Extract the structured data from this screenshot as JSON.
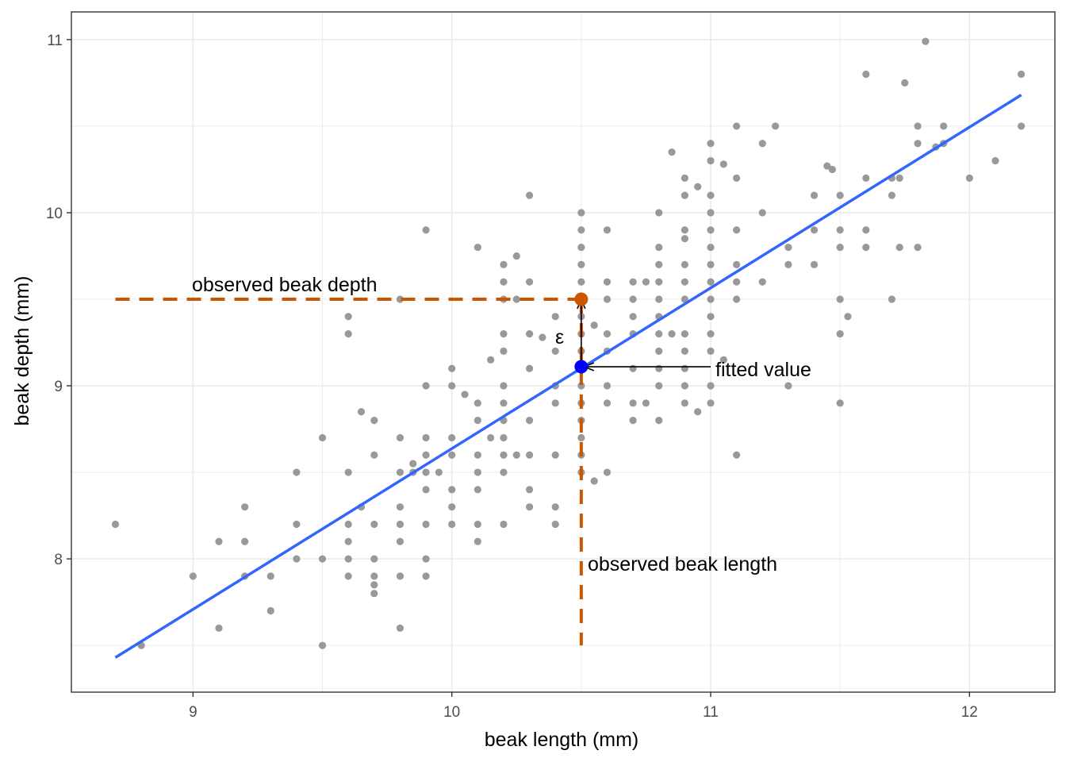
{
  "chart_data": {
    "type": "scatter",
    "title": "",
    "xlabel": "beak length (mm)",
    "ylabel": "beak depth (mm)",
    "xlim": [
      8.53,
      12.33
    ],
    "ylim": [
      7.23,
      11.16
    ],
    "grid": true,
    "x_ticks": [
      9,
      10,
      11,
      12
    ],
    "x_tick_labels": [
      "9",
      "10",
      "11",
      "12"
    ],
    "y_ticks": [
      8,
      9,
      10,
      11
    ],
    "y_tick_labels": [
      "8",
      "9",
      "10",
      "11"
    ],
    "colors": {
      "points": "#999999",
      "fit_line": "#3366ff",
      "observed": "#cc5500",
      "fitted_point": "#0000ff",
      "grid": "#ebebeb",
      "border": "#333333"
    },
    "points": [
      [
        8.7,
        8.2
      ],
      [
        8.8,
        7.5
      ],
      [
        9.0,
        7.9
      ],
      [
        9.1,
        8.1
      ],
      [
        9.1,
        7.6
      ],
      [
        9.2,
        8.3
      ],
      [
        9.2,
        8.1
      ],
      [
        9.2,
        7.9
      ],
      [
        9.3,
        7.9
      ],
      [
        9.3,
        7.7
      ],
      [
        9.4,
        8.5
      ],
      [
        9.4,
        8.2
      ],
      [
        9.4,
        8.0
      ],
      [
        9.5,
        8.7
      ],
      [
        9.5,
        8.0
      ],
      [
        9.5,
        7.5
      ],
      [
        9.6,
        9.4
      ],
      [
        9.6,
        9.3
      ],
      [
        9.6,
        8.5
      ],
      [
        9.6,
        8.2
      ],
      [
        9.6,
        8.1
      ],
      [
        9.6,
        8.0
      ],
      [
        9.6,
        7.9
      ],
      [
        9.65,
        8.3
      ],
      [
        9.65,
        8.85
      ],
      [
        9.7,
        8.8
      ],
      [
        9.7,
        8.6
      ],
      [
        9.7,
        8.2
      ],
      [
        9.7,
        8.0
      ],
      [
        9.7,
        7.9
      ],
      [
        9.7,
        7.85
      ],
      [
        9.7,
        7.8
      ],
      [
        9.8,
        9.5
      ],
      [
        9.8,
        8.7
      ],
      [
        9.8,
        8.5
      ],
      [
        9.8,
        8.3
      ],
      [
        9.8,
        8.2
      ],
      [
        9.8,
        8.1
      ],
      [
        9.8,
        7.9
      ],
      [
        9.8,
        7.6
      ],
      [
        9.85,
        8.55
      ],
      [
        9.85,
        8.5
      ],
      [
        9.9,
        9.9
      ],
      [
        9.9,
        9.0
      ],
      [
        9.9,
        8.7
      ],
      [
        9.9,
        8.6
      ],
      [
        9.9,
        8.5
      ],
      [
        9.9,
        8.4
      ],
      [
        9.9,
        8.2
      ],
      [
        9.9,
        8.0
      ],
      [
        9.9,
        7.9
      ],
      [
        9.95,
        8.5
      ],
      [
        10.0,
        9.1
      ],
      [
        10.0,
        9.0
      ],
      [
        10.0,
        8.7
      ],
      [
        10.0,
        8.6
      ],
      [
        10.0,
        8.4
      ],
      [
        10.0,
        8.3
      ],
      [
        10.0,
        8.2
      ],
      [
        10.05,
        8.95
      ],
      [
        10.1,
        9.8
      ],
      [
        10.1,
        8.9
      ],
      [
        10.1,
        8.8
      ],
      [
        10.1,
        8.6
      ],
      [
        10.1,
        8.5
      ],
      [
        10.1,
        8.4
      ],
      [
        10.1,
        8.2
      ],
      [
        10.1,
        8.1
      ],
      [
        10.15,
        8.7
      ],
      [
        10.15,
        9.15
      ],
      [
        10.2,
        9.7
      ],
      [
        10.2,
        9.6
      ],
      [
        10.2,
        9.5
      ],
      [
        10.2,
        9.3
      ],
      [
        10.2,
        9.2
      ],
      [
        10.2,
        9.0
      ],
      [
        10.2,
        8.9
      ],
      [
        10.2,
        8.8
      ],
      [
        10.2,
        8.7
      ],
      [
        10.2,
        8.6
      ],
      [
        10.2,
        8.5
      ],
      [
        10.2,
        8.2
      ],
      [
        10.25,
        9.5
      ],
      [
        10.25,
        9.75
      ],
      [
        10.25,
        8.6
      ],
      [
        10.3,
        10.1
      ],
      [
        10.3,
        9.6
      ],
      [
        10.3,
        9.3
      ],
      [
        10.3,
        9.1
      ],
      [
        10.3,
        8.8
      ],
      [
        10.3,
        8.6
      ],
      [
        10.3,
        8.4
      ],
      [
        10.3,
        8.3
      ],
      [
        10.35,
        9.28
      ],
      [
        10.4,
        9.4
      ],
      [
        10.4,
        9.2
      ],
      [
        10.4,
        9.0
      ],
      [
        10.4,
        8.9
      ],
      [
        10.4,
        8.6
      ],
      [
        10.4,
        8.3
      ],
      [
        10.4,
        8.2
      ],
      [
        10.5,
        10.0
      ],
      [
        10.5,
        9.9
      ],
      [
        10.5,
        9.8
      ],
      [
        10.5,
        9.7
      ],
      [
        10.5,
        9.6
      ],
      [
        10.5,
        9.4
      ],
      [
        10.5,
        9.3
      ],
      [
        10.5,
        9.2
      ],
      [
        10.5,
        9.0
      ],
      [
        10.5,
        8.9
      ],
      [
        10.5,
        8.8
      ],
      [
        10.5,
        8.7
      ],
      [
        10.5,
        8.6
      ],
      [
        10.5,
        8.5
      ],
      [
        10.55,
        9.35
      ],
      [
        10.55,
        8.45
      ],
      [
        10.6,
        9.9
      ],
      [
        10.6,
        9.6
      ],
      [
        10.6,
        9.5
      ],
      [
        10.6,
        9.3
      ],
      [
        10.6,
        9.2
      ],
      [
        10.6,
        9.0
      ],
      [
        10.6,
        8.9
      ],
      [
        10.6,
        8.5
      ],
      [
        10.7,
        9.6
      ],
      [
        10.7,
        9.5
      ],
      [
        10.7,
        9.4
      ],
      [
        10.7,
        9.3
      ],
      [
        10.7,
        9.1
      ],
      [
        10.7,
        8.9
      ],
      [
        10.7,
        8.8
      ],
      [
        10.75,
        9.6
      ],
      [
        10.75,
        8.9
      ],
      [
        10.8,
        10.0
      ],
      [
        10.8,
        9.8
      ],
      [
        10.8,
        9.7
      ],
      [
        10.8,
        9.6
      ],
      [
        10.8,
        9.5
      ],
      [
        10.8,
        9.4
      ],
      [
        10.8,
        9.3
      ],
      [
        10.8,
        9.2
      ],
      [
        10.8,
        9.1
      ],
      [
        10.8,
        9.0
      ],
      [
        10.8,
        8.8
      ],
      [
        10.85,
        10.35
      ],
      [
        10.85,
        9.3
      ],
      [
        10.9,
        10.2
      ],
      [
        10.9,
        10.1
      ],
      [
        10.9,
        9.9
      ],
      [
        10.9,
        9.85
      ],
      [
        10.9,
        9.7
      ],
      [
        10.9,
        9.6
      ],
      [
        10.9,
        9.5
      ],
      [
        10.9,
        9.3
      ],
      [
        10.9,
        9.2
      ],
      [
        10.9,
        9.1
      ],
      [
        10.9,
        9.0
      ],
      [
        10.9,
        8.9
      ],
      [
        10.95,
        10.15
      ],
      [
        10.95,
        8.85
      ],
      [
        11.0,
        10.4
      ],
      [
        11.0,
        10.3
      ],
      [
        11.0,
        10.1
      ],
      [
        11.0,
        10.0
      ],
      [
        11.0,
        9.9
      ],
      [
        11.0,
        9.8
      ],
      [
        11.0,
        9.7
      ],
      [
        11.0,
        9.6
      ],
      [
        11.0,
        9.5
      ],
      [
        11.0,
        9.4
      ],
      [
        11.0,
        9.3
      ],
      [
        11.0,
        9.2
      ],
      [
        11.0,
        9.0
      ],
      [
        11.0,
        8.9
      ],
      [
        11.05,
        10.28
      ],
      [
        11.05,
        9.15
      ],
      [
        11.1,
        10.5
      ],
      [
        11.1,
        10.2
      ],
      [
        11.1,
        9.9
      ],
      [
        11.1,
        9.7
      ],
      [
        11.1,
        9.6
      ],
      [
        11.1,
        9.5
      ],
      [
        11.1,
        8.6
      ],
      [
        11.2,
        10.4
      ],
      [
        11.2,
        10.0
      ],
      [
        11.2,
        9.6
      ],
      [
        11.25,
        10.5
      ],
      [
        11.3,
        9.8
      ],
      [
        11.3,
        9.7
      ],
      [
        11.3,
        9.0
      ],
      [
        11.4,
        10.1
      ],
      [
        11.4,
        9.9
      ],
      [
        11.4,
        9.7
      ],
      [
        11.45,
        10.27
      ],
      [
        11.47,
        10.25
      ],
      [
        11.5,
        10.1
      ],
      [
        11.5,
        9.9
      ],
      [
        11.5,
        9.8
      ],
      [
        11.5,
        9.5
      ],
      [
        11.5,
        9.3
      ],
      [
        11.5,
        8.9
      ],
      [
        11.53,
        9.4
      ],
      [
        11.6,
        10.8
      ],
      [
        11.6,
        10.2
      ],
      [
        11.6,
        9.9
      ],
      [
        11.6,
        9.8
      ],
      [
        11.7,
        10.2
      ],
      [
        11.7,
        10.1
      ],
      [
        11.7,
        9.5
      ],
      [
        11.73,
        10.2
      ],
      [
        11.73,
        9.8
      ],
      [
        11.75,
        10.75
      ],
      [
        11.8,
        10.5
      ],
      [
        11.8,
        10.4
      ],
      [
        11.8,
        9.8
      ],
      [
        11.83,
        10.99
      ],
      [
        11.87,
        10.38
      ],
      [
        11.9,
        10.5
      ],
      [
        11.9,
        10.4
      ],
      [
        12.0,
        10.2
      ],
      [
        12.1,
        10.3
      ],
      [
        12.2,
        10.8
      ],
      [
        12.2,
        10.5
      ]
    ],
    "fit_line": {
      "x": [
        8.7,
        12.2
      ],
      "y": [
        7.43,
        10.68
      ]
    },
    "observed_point": {
      "x": 10.5,
      "y": 9.5
    },
    "fitted_point": {
      "x": 10.5,
      "y": 9.11
    },
    "annotations": {
      "observed_depth": "observed beak depth",
      "observed_length": "observed beak length",
      "fitted_value": "fitted value",
      "residual": "ε"
    }
  }
}
